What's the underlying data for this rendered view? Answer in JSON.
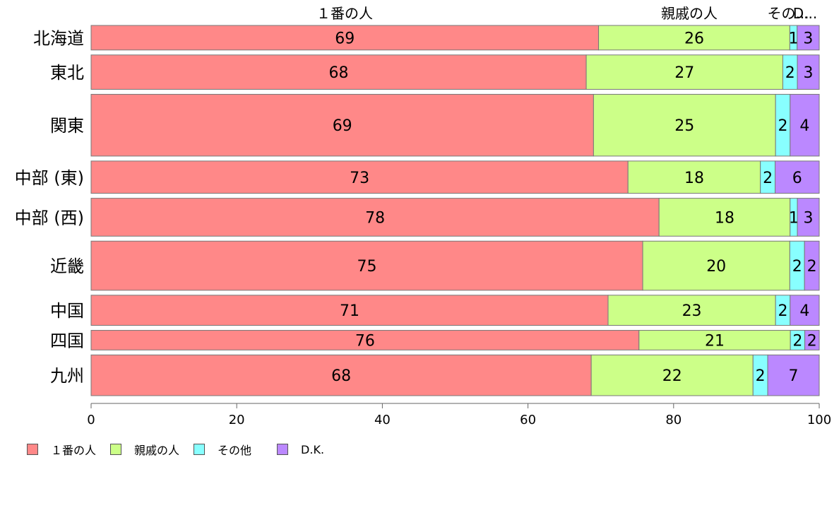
{
  "chart_data": {
    "type": "bar",
    "orientation": "horizontal",
    "stacked": true,
    "categories": [
      "北海道",
      "東北",
      "関東",
      "中部 (東)",
      "中部 (西)",
      "近畿",
      "中国",
      "四国",
      "九州"
    ],
    "series": [
      {
        "name": "１番の人",
        "color": "#ff8888",
        "values": [
          69,
          68,
          69,
          73,
          78,
          75,
          71,
          76,
          68
        ]
      },
      {
        "name": "親戚の人",
        "color": "#ccff88",
        "values": [
          26,
          27,
          25,
          18,
          18,
          20,
          23,
          21,
          22
        ]
      },
      {
        "name": "その他",
        "color": "#88ffff",
        "values": [
          1,
          2,
          2,
          2,
          1,
          2,
          2,
          2,
          2
        ]
      },
      {
        "name": "D.K.",
        "color": "#bb88ff",
        "values": [
          3,
          3,
          4,
          6,
          3,
          2,
          4,
          2,
          7
        ]
      }
    ],
    "top_labels": [
      "１番の人",
      "親戚の人",
      "その...",
      "D..."
    ],
    "xticks": [
      "0",
      "20",
      "40",
      "60",
      "80",
      "100"
    ],
    "xlim": [
      0,
      100
    ],
    "row_weights": [
      0.7,
      0.98,
      1.76,
      0.92,
      1.08,
      1.4,
      0.86,
      0.56,
      1.16
    ],
    "legend_position": "bottom-left",
    "grid": false
  },
  "legend": {
    "items": [
      "１番の人",
      "親戚の人",
      "その他",
      "D.K."
    ]
  }
}
